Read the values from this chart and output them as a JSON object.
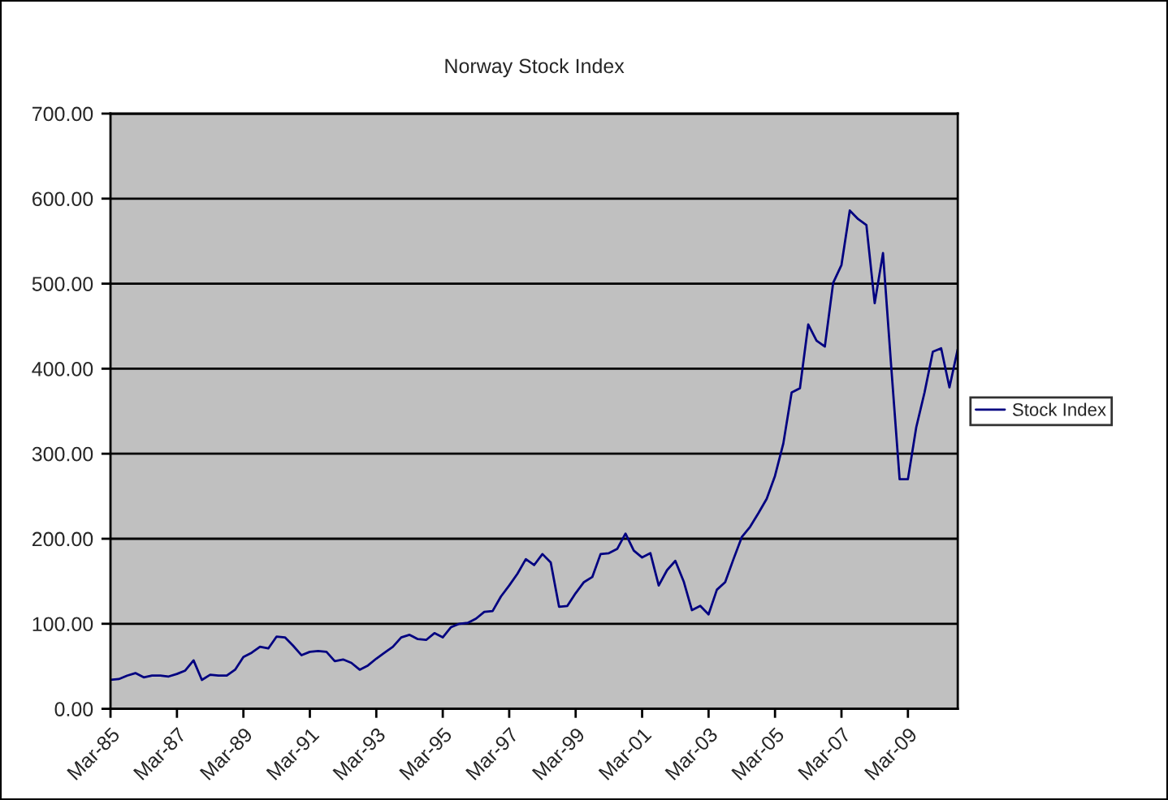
{
  "chart_data": {
    "type": "line",
    "title": "Norway Stock Index",
    "categories": [
      "Mar-85",
      null,
      null,
      null,
      null,
      null,
      null,
      null,
      "Mar-87",
      null,
      null,
      null,
      null,
      null,
      null,
      null,
      "Mar-89",
      null,
      null,
      null,
      null,
      null,
      null,
      null,
      "Mar-91",
      null,
      null,
      null,
      null,
      null,
      null,
      null,
      "Mar-93",
      null,
      null,
      null,
      null,
      null,
      null,
      null,
      "Mar-95",
      null,
      null,
      null,
      null,
      null,
      null,
      null,
      "Mar-97",
      null,
      null,
      null,
      null,
      null,
      null,
      null,
      "Mar-99",
      null,
      null,
      null,
      null,
      null,
      null,
      null,
      "Mar-01",
      null,
      null,
      null,
      null,
      null,
      null,
      null,
      "Mar-03",
      null,
      null,
      null,
      null,
      null,
      null,
      null,
      "Mar-05",
      null,
      null,
      null,
      null,
      null,
      null,
      null,
      "Mar-07",
      null,
      null,
      null,
      null,
      null,
      null,
      null,
      "Mar-09",
      null,
      null,
      null,
      null,
      null,
      null
    ],
    "series": [
      {
        "name": "Stock Index",
        "color": "#000080",
        "values": [
          34,
          35,
          39,
          42,
          37,
          39,
          39,
          38,
          41,
          45,
          57,
          34,
          40,
          39,
          39,
          46,
          61,
          66,
          73,
          71,
          85,
          84,
          74,
          63,
          67,
          68,
          67,
          56,
          58,
          54,
          46,
          51,
          59,
          66,
          73,
          84,
          87,
          82,
          81,
          89,
          84,
          96,
          100,
          101,
          106,
          114,
          115,
          132,
          145,
          159,
          176,
          169,
          182,
          172,
          120,
          121,
          136,
          149,
          155,
          182,
          183,
          188,
          206,
          186,
          178,
          183,
          145,
          163,
          174,
          150,
          116,
          121,
          111,
          140,
          149,
          176,
          202,
          214,
          230,
          247,
          274,
          312,
          372,
          377,
          452,
          433,
          426,
          501,
          522,
          586,
          576,
          569,
          477,
          536,
          401,
          270,
          270,
          331,
          372,
          420,
          424,
          378,
          423
        ]
      }
    ],
    "ylim": [
      0,
      700
    ],
    "yticks": [
      {
        "value": 0,
        "label": "0.00"
      },
      {
        "value": 100,
        "label": "100.00"
      },
      {
        "value": 200,
        "label": "200.00"
      },
      {
        "value": 300,
        "label": "300.00"
      },
      {
        "value": 400,
        "label": "400.00"
      },
      {
        "value": 500,
        "label": "500.00"
      },
      {
        "value": 600,
        "label": "600.00"
      },
      {
        "value": 700,
        "label": "700.00"
      }
    ],
    "grid": "y",
    "legend": "right",
    "marker": "none",
    "line_style": "solid"
  }
}
